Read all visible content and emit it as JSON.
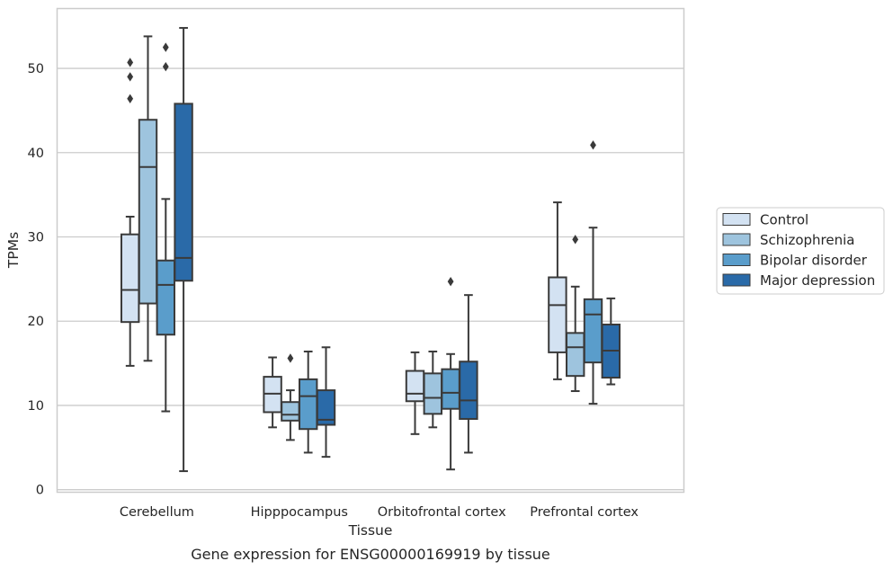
{
  "chart_data": {
    "type": "box",
    "xlabel": "Tissue",
    "ylabel": "TPMs",
    "caption": "Gene expression for ENSG00000169919 by tissue",
    "ylim": [
      -0.3,
      57.1
    ],
    "yticks": [
      0,
      10,
      20,
      30,
      40,
      50
    ],
    "grid": "horizontal",
    "legend_position": "right",
    "categories": [
      "Cerebellum",
      "Hipppocampus",
      "Orbitofrontal cortex",
      "Prefrontal cortex"
    ],
    "series": [
      {
        "name": "Control",
        "color": "#d3e2f2",
        "boxes": [
          {
            "whislo": 14.7,
            "q1": 19.9,
            "med": 23.7,
            "q3": 30.3,
            "whishi": 32.4,
            "fliers": [
              46.4,
              49.0,
              50.7
            ]
          },
          {
            "whislo": 7.4,
            "q1": 9.2,
            "med": 11.4,
            "q3": 13.4,
            "whishi": 15.7,
            "fliers": []
          },
          {
            "whislo": 6.6,
            "q1": 10.5,
            "med": 11.4,
            "q3": 14.1,
            "whishi": 16.3,
            "fliers": []
          },
          {
            "whislo": 13.1,
            "q1": 16.3,
            "med": 21.9,
            "q3": 25.2,
            "whishi": 34.1,
            "fliers": []
          }
        ]
      },
      {
        "name": "Schizophrenia",
        "color": "#9ec4de",
        "boxes": [
          {
            "whislo": 15.3,
            "q1": 22.1,
            "med": 38.3,
            "q3": 43.9,
            "whishi": 53.8,
            "fliers": []
          },
          {
            "whislo": 5.9,
            "q1": 8.2,
            "med": 8.9,
            "q3": 10.4,
            "whishi": 11.8,
            "fliers": [
              15.6
            ]
          },
          {
            "whislo": 7.4,
            "q1": 9.0,
            "med": 10.9,
            "q3": 13.8,
            "whishi": 16.4,
            "fliers": []
          },
          {
            "whislo": 11.7,
            "q1": 13.5,
            "med": 16.9,
            "q3": 18.6,
            "whishi": 24.1,
            "fliers": [
              29.7
            ]
          }
        ]
      },
      {
        "name": "Bipolar disorder",
        "color": "#5a9dcb",
        "boxes": [
          {
            "whislo": 9.3,
            "q1": 18.4,
            "med": 24.3,
            "q3": 27.2,
            "whishi": 34.5,
            "fliers": [
              50.2,
              52.5
            ]
          },
          {
            "whislo": 4.4,
            "q1": 7.2,
            "med": 11.1,
            "q3": 13.1,
            "whishi": 16.4,
            "fliers": []
          },
          {
            "whislo": 2.4,
            "q1": 9.6,
            "med": 11.5,
            "q3": 14.3,
            "whishi": 16.1,
            "fliers": [
              24.7
            ]
          },
          {
            "whislo": 10.2,
            "q1": 15.1,
            "med": 20.8,
            "q3": 22.6,
            "whishi": 31.1,
            "fliers": [
              40.9
            ]
          }
        ]
      },
      {
        "name": "Major depression",
        "color": "#2a6aa8",
        "boxes": [
          {
            "whislo": 2.2,
            "q1": 24.8,
            "med": 27.5,
            "q3": 45.8,
            "whishi": 54.8,
            "fliers": []
          },
          {
            "whislo": 3.9,
            "q1": 7.7,
            "med": 8.3,
            "q3": 11.8,
            "whishi": 16.9,
            "fliers": []
          },
          {
            "whislo": 4.4,
            "q1": 8.4,
            "med": 10.6,
            "q3": 15.2,
            "whishi": 23.1,
            "fliers": []
          },
          {
            "whislo": 12.5,
            "q1": 13.3,
            "med": 16.5,
            "q3": 19.6,
            "whishi": 22.7,
            "fliers": []
          }
        ]
      }
    ]
  }
}
